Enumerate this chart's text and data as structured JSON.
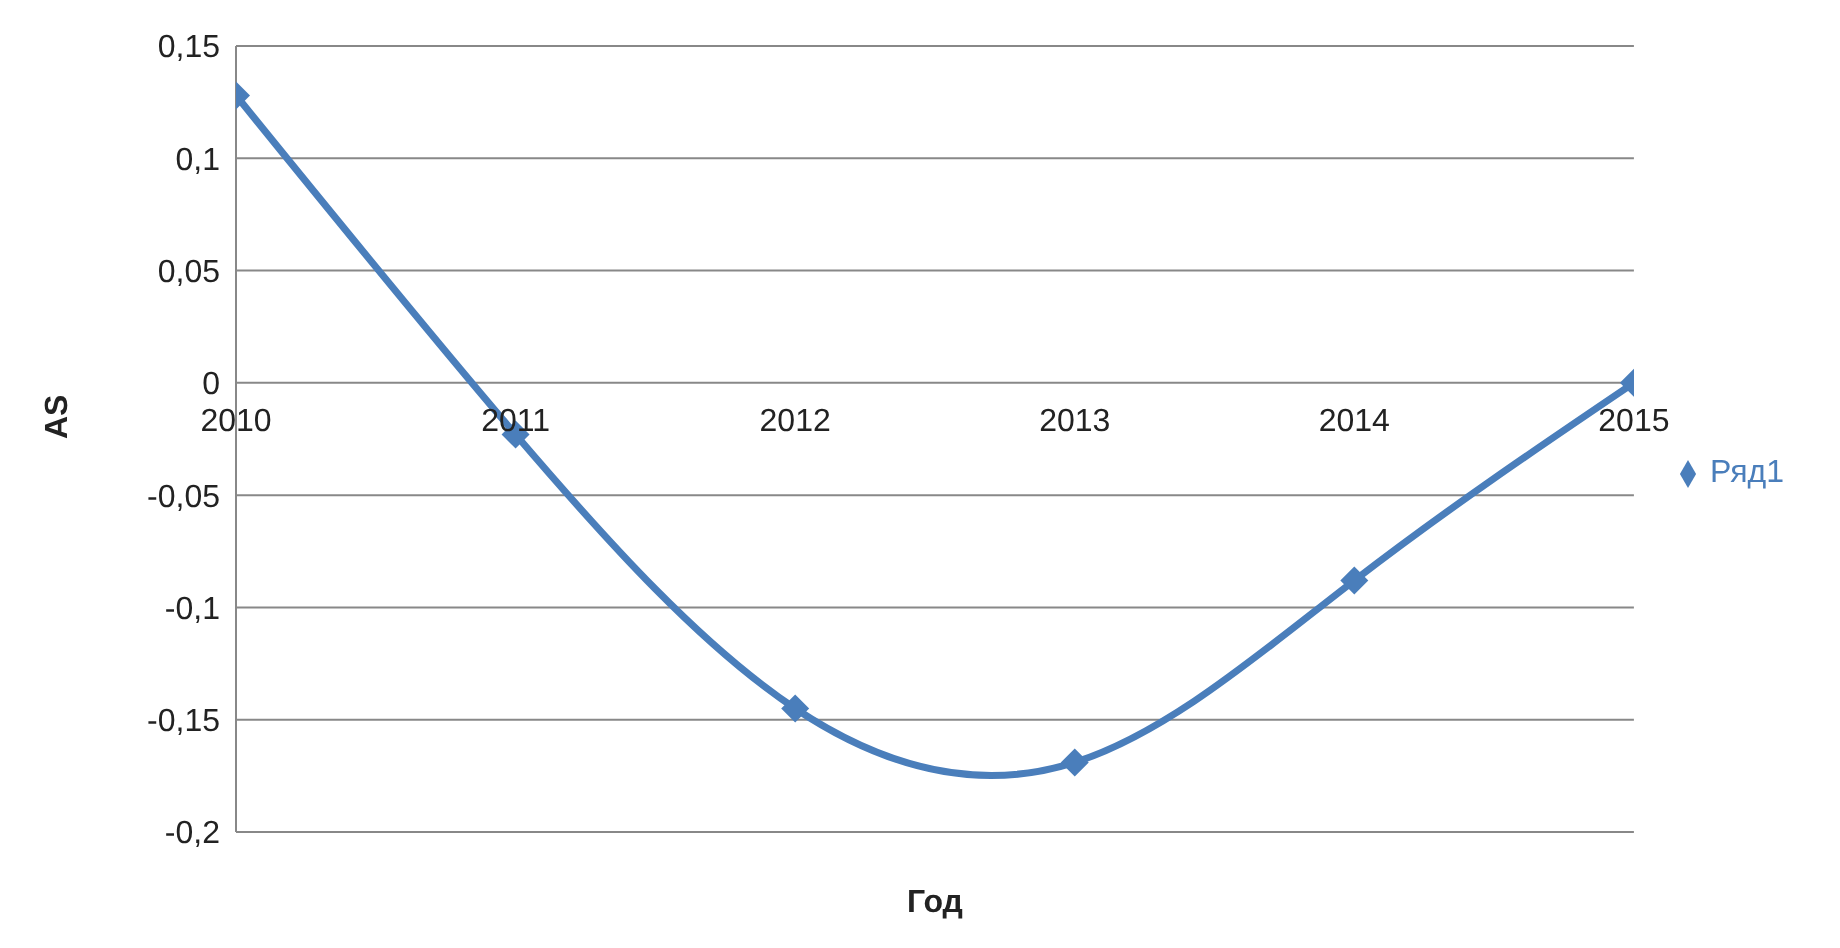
{
  "chart_data": {
    "type": "line",
    "xlabel": "Год",
    "ylabel": "AS",
    "x": [
      2010,
      2011,
      2012,
      2013,
      2014,
      2015
    ],
    "series": [
      {
        "name": "Ряд1",
        "color": "#4a7ebb",
        "values": [
          0.128,
          -0.023,
          -0.145,
          -0.169,
          -0.088,
          0
        ]
      }
    ],
    "xlim": [
      2010,
      2015
    ],
    "xticks": [
      2010,
      2011,
      2012,
      2013,
      2014,
      2015
    ],
    "ylim": [
      -0.2,
      0.15
    ],
    "yticks": [
      {
        "value": -0.2,
        "label": "-0,2"
      },
      {
        "value": -0.15,
        "label": "-0,15"
      },
      {
        "value": -0.1,
        "label": "-0,1"
      },
      {
        "value": -0.05,
        "label": "-0,05"
      },
      0,
      {
        "value": 0.05,
        "label": "0,05"
      },
      {
        "value": 0.1,
        "label": "0,1"
      },
      {
        "value": 0.15,
        "label": "0,15"
      }
    ],
    "grid": "y",
    "legend": "right",
    "marker": "diamond",
    "line_style": "solid"
  }
}
